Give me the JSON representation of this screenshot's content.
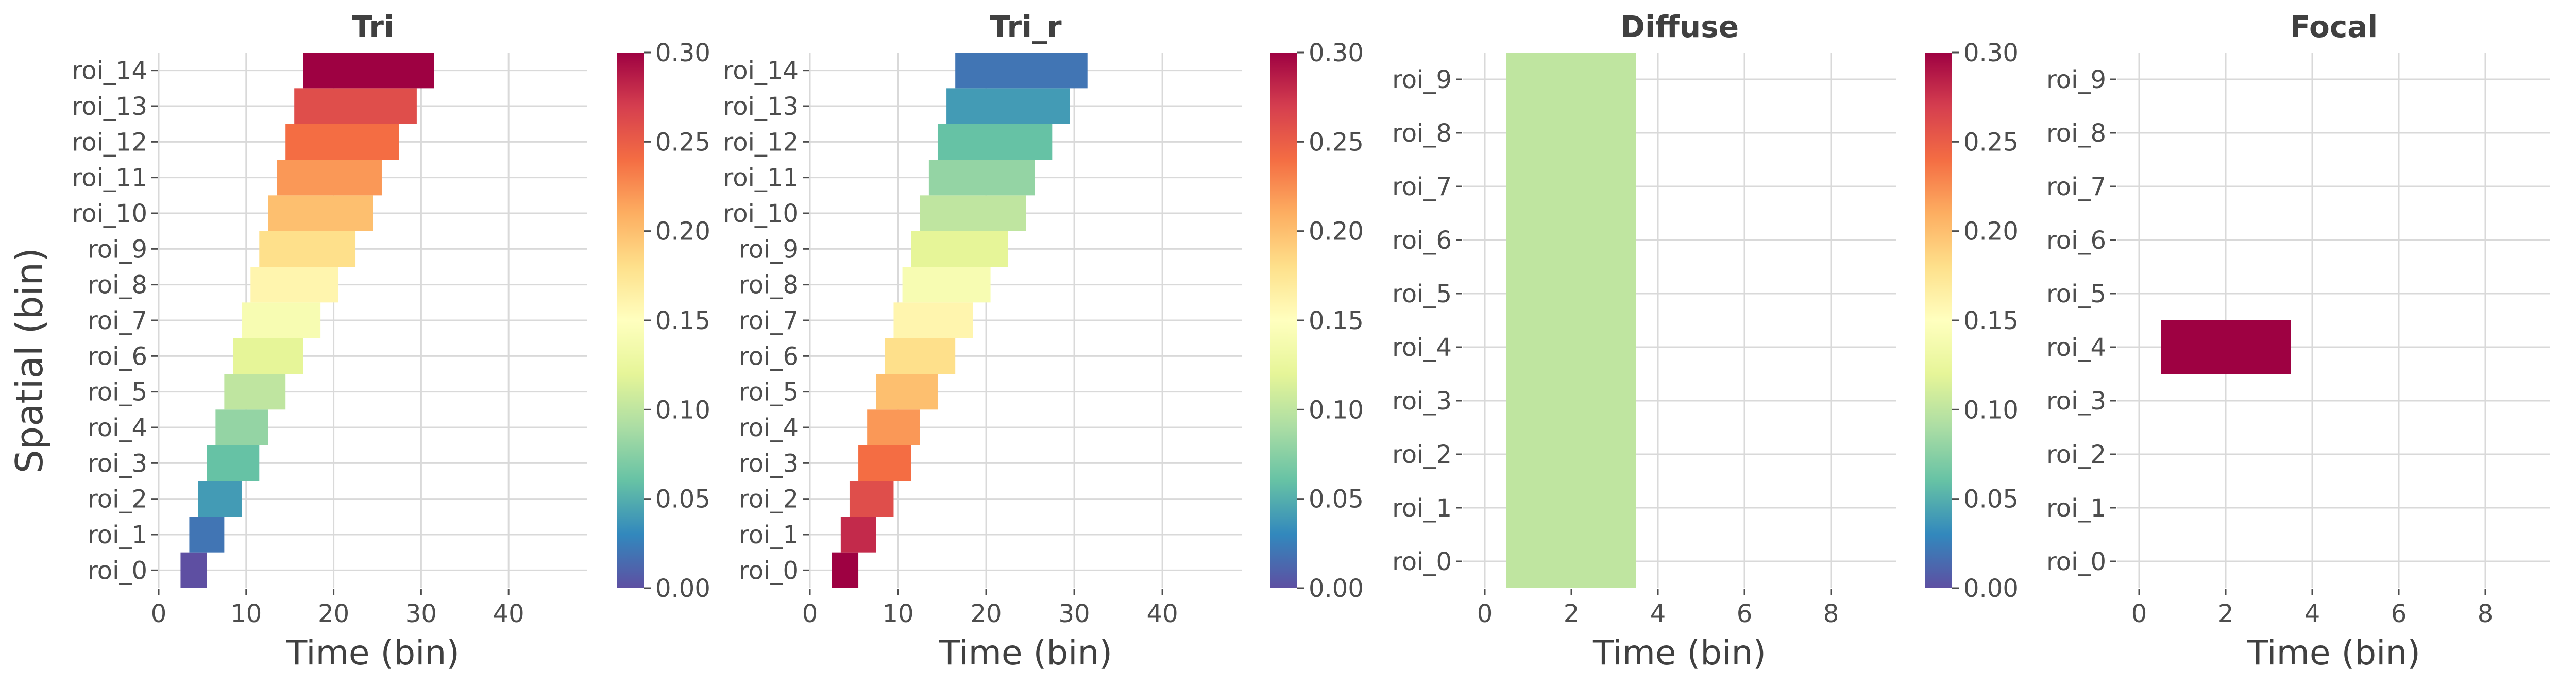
{
  "figure": {
    "ylabel": "Spatial (bin)",
    "colormap": [
      "#5e4fa2",
      "#3288bd",
      "#66c2a5",
      "#abdda4",
      "#e6f598",
      "#ffffbf",
      "#fee08b",
      "#fdae61",
      "#f46d43",
      "#d53e4f",
      "#9e0142"
    ]
  },
  "chart_data": [
    {
      "type": "heatmap",
      "title": "Tri",
      "xlabel": "Time (bin)",
      "xlim": [
        0,
        49
      ],
      "xticks": [
        0,
        10,
        20,
        30,
        40
      ],
      "rows": [
        "roi_0",
        "roi_1",
        "roi_2",
        "roi_3",
        "roi_4",
        "roi_5",
        "roi_6",
        "roi_7",
        "roi_8",
        "roi_9",
        "roi_10",
        "roi_11",
        "roi_12",
        "roi_13",
        "roi_14"
      ],
      "blocks": [
        {
          "roi": "roi_0",
          "x_start": 2.5,
          "x_end": 5.5,
          "value": 0.0
        },
        {
          "roi": "roi_1",
          "x_start": 3.5,
          "x_end": 7.5,
          "value": 0.02
        },
        {
          "roi": "roi_2",
          "x_start": 4.5,
          "x_end": 9.5,
          "value": 0.04
        },
        {
          "roi": "roi_3",
          "x_start": 5.5,
          "x_end": 11.5,
          "value": 0.06
        },
        {
          "roi": "roi_4",
          "x_start": 6.5,
          "x_end": 12.5,
          "value": 0.08
        },
        {
          "roi": "roi_5",
          "x_start": 7.5,
          "x_end": 14.5,
          "value": 0.1
        },
        {
          "roi": "roi_6",
          "x_start": 8.5,
          "x_end": 16.5,
          "value": 0.12
        },
        {
          "roi": "roi_7",
          "x_start": 9.5,
          "x_end": 18.5,
          "value": 0.14
        },
        {
          "roi": "roi_8",
          "x_start": 10.5,
          "x_end": 20.5,
          "value": 0.16
        },
        {
          "roi": "roi_9",
          "x_start": 11.5,
          "x_end": 22.5,
          "value": 0.18
        },
        {
          "roi": "roi_10",
          "x_start": 12.5,
          "x_end": 24.5,
          "value": 0.2
        },
        {
          "roi": "roi_11",
          "x_start": 13.5,
          "x_end": 25.5,
          "value": 0.22
        },
        {
          "roi": "roi_12",
          "x_start": 14.5,
          "x_end": 27.5,
          "value": 0.24
        },
        {
          "roi": "roi_13",
          "x_start": 15.5,
          "x_end": 29.5,
          "value": 0.26
        },
        {
          "roi": "roi_14",
          "x_start": 16.5,
          "x_end": 31.5,
          "value": 0.3
        }
      ],
      "colorbar": {
        "vmin": 0.0,
        "vmax": 0.3,
        "ticks": [
          "0.00",
          "0.05",
          "0.10",
          "0.15",
          "0.20",
          "0.25",
          "0.30"
        ]
      },
      "grid": true
    },
    {
      "type": "heatmap",
      "title": "Tri_r",
      "xlabel": "Time (bin)",
      "xlim": [
        0,
        49
      ],
      "xticks": [
        0,
        10,
        20,
        30,
        40
      ],
      "rows": [
        "roi_0",
        "roi_1",
        "roi_2",
        "roi_3",
        "roi_4",
        "roi_5",
        "roi_6",
        "roi_7",
        "roi_8",
        "roi_9",
        "roi_10",
        "roi_11",
        "roi_12",
        "roi_13",
        "roi_14"
      ],
      "blocks": [
        {
          "roi": "roi_0",
          "x_start": 2.5,
          "x_end": 5.5,
          "value": 0.3
        },
        {
          "roi": "roi_1",
          "x_start": 3.5,
          "x_end": 7.5,
          "value": 0.28
        },
        {
          "roi": "roi_2",
          "x_start": 4.5,
          "x_end": 9.5,
          "value": 0.26
        },
        {
          "roi": "roi_3",
          "x_start": 5.5,
          "x_end": 11.5,
          "value": 0.24
        },
        {
          "roi": "roi_4",
          "x_start": 6.5,
          "x_end": 12.5,
          "value": 0.22
        },
        {
          "roi": "roi_5",
          "x_start": 7.5,
          "x_end": 14.5,
          "value": 0.2
        },
        {
          "roi": "roi_6",
          "x_start": 8.5,
          "x_end": 16.5,
          "value": 0.18
        },
        {
          "roi": "roi_7",
          "x_start": 9.5,
          "x_end": 18.5,
          "value": 0.16
        },
        {
          "roi": "roi_8",
          "x_start": 10.5,
          "x_end": 20.5,
          "value": 0.14
        },
        {
          "roi": "roi_9",
          "x_start": 11.5,
          "x_end": 22.5,
          "value": 0.12
        },
        {
          "roi": "roi_10",
          "x_start": 12.5,
          "x_end": 24.5,
          "value": 0.1
        },
        {
          "roi": "roi_11",
          "x_start": 13.5,
          "x_end": 25.5,
          "value": 0.08
        },
        {
          "roi": "roi_12",
          "x_start": 14.5,
          "x_end": 27.5,
          "value": 0.06
        },
        {
          "roi": "roi_13",
          "x_start": 15.5,
          "x_end": 29.5,
          "value": 0.04
        },
        {
          "roi": "roi_14",
          "x_start": 16.5,
          "x_end": 31.5,
          "value": 0.02
        }
      ],
      "colorbar": {
        "vmin": 0.0,
        "vmax": 0.3,
        "ticks": [
          "0.00",
          "0.05",
          "0.10",
          "0.15",
          "0.20",
          "0.25",
          "0.30"
        ]
      },
      "grid": true
    },
    {
      "type": "heatmap",
      "title": "Diffuse",
      "xlabel": "Time (bin)",
      "xlim": [
        -0.5,
        9.5
      ],
      "xticks": [
        0,
        2,
        4,
        6,
        8
      ],
      "rows": [
        "roi_0",
        "roi_1",
        "roi_2",
        "roi_3",
        "roi_4",
        "roi_5",
        "roi_6",
        "roi_7",
        "roi_8",
        "roi_9"
      ],
      "blocks": [
        {
          "roi_from": "roi_0",
          "roi_to": "roi_9",
          "x_start": 0.5,
          "x_end": 3.5,
          "value": 0.1
        }
      ],
      "colorbar": {
        "vmin": 0.0,
        "vmax": 0.3,
        "ticks": [
          "0.00",
          "0.05",
          "0.10",
          "0.15",
          "0.20",
          "0.25",
          "0.30"
        ]
      },
      "grid": true
    },
    {
      "type": "heatmap",
      "title": "Focal",
      "xlabel": "Time (bin)",
      "xlim": [
        -0.5,
        9.5
      ],
      "xticks": [
        0,
        2,
        4,
        6,
        8
      ],
      "rows": [
        "roi_0",
        "roi_1",
        "roi_2",
        "roi_3",
        "roi_4",
        "roi_5",
        "roi_6",
        "roi_7",
        "roi_8",
        "roi_9"
      ],
      "blocks": [
        {
          "roi": "roi_4",
          "x_start": 0.5,
          "x_end": 3.5,
          "value": 0.3
        }
      ],
      "colorbar": {
        "vmin": 0.0,
        "vmax": 0.3,
        "ticks": [
          "0.00",
          "0.05",
          "0.10",
          "0.15",
          "0.20",
          "0.25",
          "0.30"
        ]
      },
      "grid": true
    }
  ]
}
